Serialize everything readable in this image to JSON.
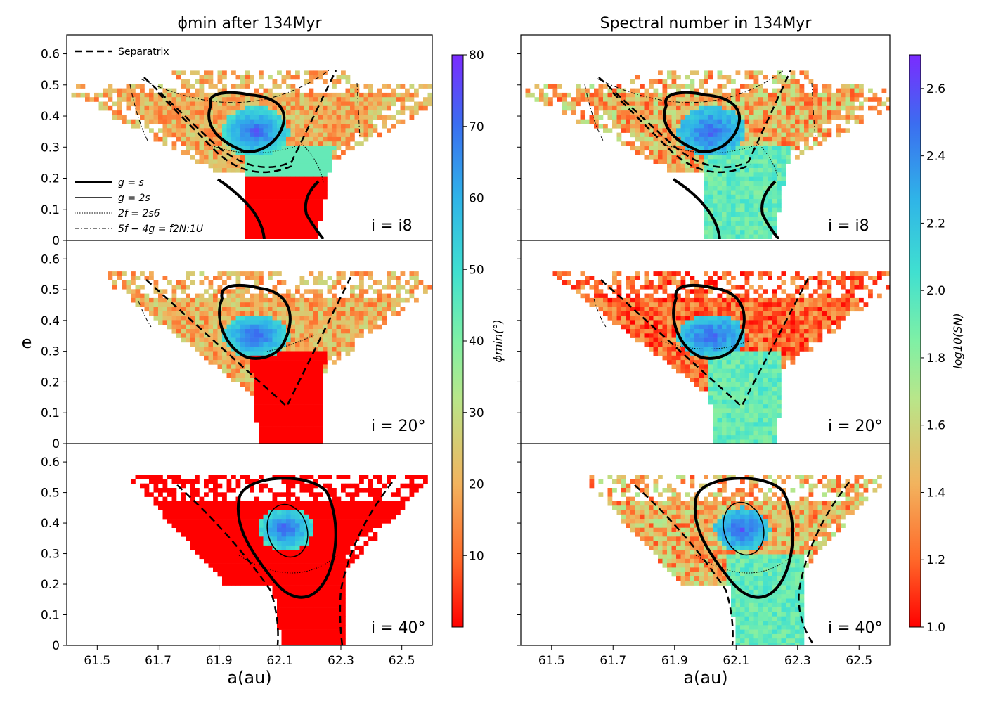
{
  "chart_data": {
    "type": "heatmap",
    "panels_layout": "3 rows x 2 columns, shared axes",
    "x_label": "a(au)",
    "y_label": "e",
    "x_ticks": [
      "61.5",
      "61.7",
      "61.9",
      "62.1",
      "62.3",
      "62.5"
    ],
    "x_tick_values": [
      61.5,
      61.7,
      61.9,
      62.1,
      62.3,
      62.5
    ],
    "y_ticks": [
      "0",
      "0.1",
      "0.2",
      "0.3",
      "0.4",
      "0.5",
      "0.6"
    ],
    "y_tick_values": [
      0,
      0.1,
      0.2,
      0.3,
      0.4,
      0.5,
      0.6
    ],
    "xlim": [
      61.4,
      62.6
    ],
    "ylim": [
      0,
      0.66
    ],
    "row_labels": [
      "i = i8",
      "i = 20°",
      "i = 40°"
    ],
    "columns": [
      {
        "title": "ϕmin after 134Myr",
        "colorbar_label": "ϕmin(°)",
        "colorbar_range": [
          0,
          80
        ],
        "colorbar_ticks": [
          "10",
          "20",
          "30",
          "40",
          "50",
          "60",
          "70",
          "80"
        ],
        "colorbar_tick_values": [
          10,
          20,
          30,
          40,
          50,
          60,
          70,
          80
        ]
      },
      {
        "title": "Spectral number in 134Myr",
        "colorbar_label": "log10(SN)",
        "colorbar_range": [
          1.0,
          2.7
        ],
        "colorbar_ticks": [
          "1.0",
          "1.2",
          "1.4",
          "1.6",
          "1.8",
          "2.0",
          "2.2",
          "2.4",
          "2.6"
        ],
        "colorbar_tick_values": [
          1.0,
          1.2,
          1.4,
          1.6,
          1.8,
          2.0,
          2.2,
          2.4,
          2.6
        ]
      }
    ],
    "legend": {
      "location": "top-left of first panel",
      "entries": [
        "Separatrix",
        "g = s",
        "g = 2s",
        "2f = 2s6",
        "5f − 4g = f2N:1U"
      ]
    },
    "curves": {
      "gs_center_a": [
        62.02,
        62.02,
        62.12
      ],
      "gs_center_e": [
        0.375,
        0.375,
        0.35
      ],
      "g2s_center_a": [
        62.15
      ],
      "g2s_center_e": [
        0.37
      ]
    },
    "colors": {
      "phi_low": "#ff0000",
      "phi_mid": "#40e0d0",
      "phi_high": "#7b2bff",
      "line": "#000000"
    }
  }
}
